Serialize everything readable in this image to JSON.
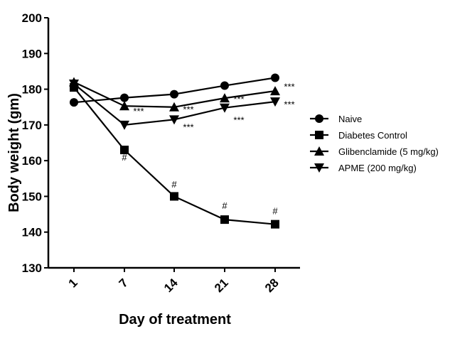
{
  "chart_data": {
    "type": "line",
    "xlabel": "Day of treatment",
    "ylabel": "Body weight (gm)",
    "categories": [
      "1",
      "7",
      "14",
      "21",
      "28"
    ],
    "ylim": [
      130,
      200
    ],
    "yticks": [
      130,
      140,
      150,
      160,
      170,
      180,
      190,
      200
    ],
    "legend_position": "right",
    "grid": false,
    "series": [
      {
        "name": "Naive",
        "marker": "circle",
        "values": [
          176.3,
          177.6,
          178.6,
          181.0,
          183.2
        ]
      },
      {
        "name": "Diabetes Control",
        "marker": "square",
        "values": [
          180.5,
          163.0,
          150.0,
          143.5,
          142.2
        ]
      },
      {
        "name": "Glibenclamide (5 mg/kg)",
        "marker": "triangle-up",
        "values": [
          182.0,
          175.3,
          175.0,
          177.5,
          179.5
        ]
      },
      {
        "name": "APME (200 mg/kg)",
        "marker": "triangle-down",
        "values": [
          181.5,
          170.0,
          171.5,
          174.8,
          176.5
        ]
      }
    ],
    "annotations": [
      {
        "text": "#",
        "x": "7",
        "y": 160.0
      },
      {
        "text": "#",
        "x": "14",
        "y": 152.5
      },
      {
        "text": "#",
        "x": "21",
        "y": 146.5
      },
      {
        "text": "#",
        "x": "28",
        "y": 145.0
      },
      {
        "text": "***",
        "x": "7",
        "y": 173.0
      },
      {
        "text": "***",
        "x": "14",
        "y": 173.5
      },
      {
        "text": "***",
        "x": "14",
        "y": 168.5
      },
      {
        "text": "***",
        "x": "21",
        "y": 176.3
      },
      {
        "text": "***",
        "x": "21",
        "y": 170.5
      },
      {
        "text": "***",
        "x": "28",
        "y": 179.8
      },
      {
        "text": "***",
        "x": "28",
        "y": 174.8
      }
    ]
  }
}
